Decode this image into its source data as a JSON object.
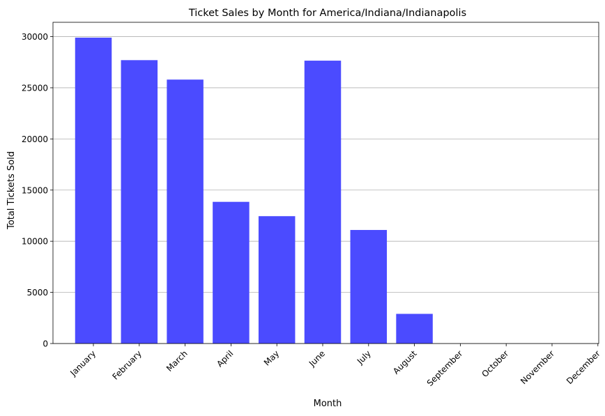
{
  "chart_data": {
    "type": "bar",
    "title": "Ticket Sales by Month for America/Indiana/Indianapolis",
    "xlabel": "Month",
    "ylabel": "Total Tickets Sold",
    "categories": [
      "January",
      "February",
      "March",
      "April",
      "May",
      "June",
      "July",
      "August",
      "September",
      "October",
      "November",
      "December"
    ],
    "values": [
      29900,
      27700,
      25800,
      13850,
      12450,
      27650,
      11100,
      2900,
      0,
      0,
      0,
      0
    ],
    "ylim": [
      0,
      31400
    ],
    "yticks": [
      0,
      5000,
      10000,
      15000,
      20000,
      25000,
      30000
    ],
    "grid": "horizontal",
    "bar_color": "#4b4bff"
  }
}
